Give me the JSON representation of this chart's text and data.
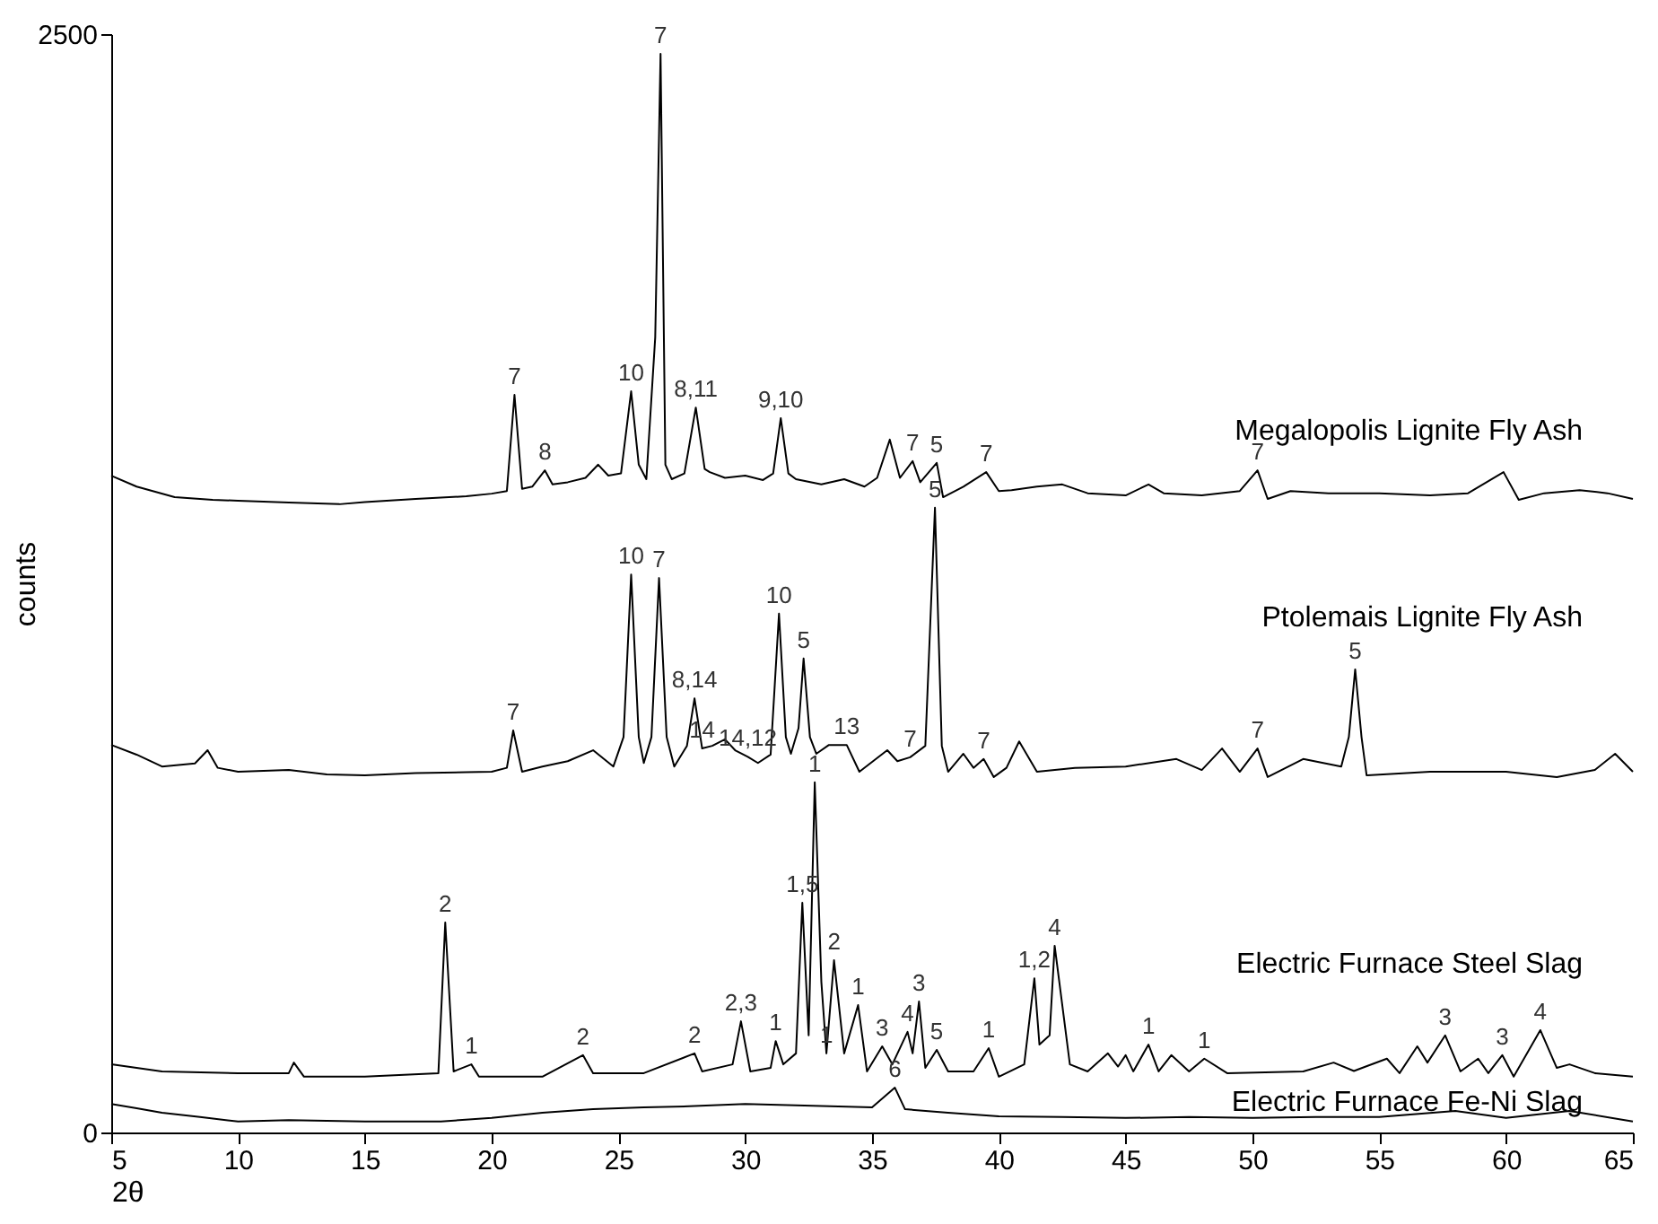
{
  "chart_data": {
    "type": "line",
    "xlabel": "2θ",
    "ylabel": "counts",
    "xlim": [
      5,
      65
    ],
    "xticks": [
      5,
      10,
      15,
      20,
      25,
      30,
      35,
      40,
      45,
      50,
      55,
      60,
      65
    ],
    "ylim": [
      0,
      2500
    ],
    "yticks": [
      0,
      2500
    ],
    "series": [
      {
        "name": "Megalopolis Lignite Fly Ash",
        "color": "#000000",
        "x": [
          5,
          6,
          7.5,
          9,
          10,
          12,
          14,
          15,
          17,
          19,
          20,
          20.6,
          20.9,
          21.2,
          21.6,
          22.1,
          22.4,
          23,
          23.7,
          24.2,
          24.6,
          25.1,
          25.5,
          25.8,
          26.1,
          26.45,
          26.66,
          26.85,
          27.1,
          27.6,
          28.05,
          28.4,
          28.6,
          29.2,
          30,
          30.7,
          31.1,
          31.4,
          31.7,
          32,
          33,
          33.9,
          34.7,
          35.2,
          35.7,
          36.1,
          36.6,
          36.9,
          37.55,
          37.8,
          38.6,
          39.5,
          40,
          40.5,
          41.5,
          42.5,
          43.5,
          45,
          45.9,
          46.5,
          48,
          49.5,
          50.2,
          50.6,
          51.5,
          53,
          55,
          57,
          58.5,
          59.9,
          60.5,
          61.5,
          62.9,
          64,
          65
        ],
        "values": [
          1495,
          1470,
          1446,
          1440,
          1438,
          1434,
          1430,
          1435,
          1442,
          1448,
          1454,
          1460,
          1679,
          1465,
          1470,
          1507,
          1475,
          1480,
          1490,
          1520,
          1495,
          1500,
          1687,
          1520,
          1487,
          1810,
          2455,
          1520,
          1487,
          1500,
          1650,
          1510,
          1503,
          1490,
          1495,
          1485,
          1500,
          1626,
          1500,
          1487,
          1475,
          1487,
          1470,
          1490,
          1577,
          1490,
          1528,
          1480,
          1524,
          1446,
          1470,
          1503,
          1460,
          1462,
          1470,
          1475,
          1455,
          1450,
          1475,
          1455,
          1450,
          1460,
          1507,
          1442,
          1460,
          1455,
          1455,
          1450,
          1455,
          1503,
          1440,
          1455,
          1462,
          1455,
          1442
        ]
      },
      {
        "name": "Ptolemais Lignite Fly Ash",
        "color": "#000000",
        "x": [
          5,
          6,
          7,
          8.3,
          8.8,
          9.2,
          10,
          12,
          13.5,
          15,
          17,
          19,
          20,
          20.6,
          20.85,
          21.2,
          22,
          23,
          24,
          24.8,
          25.2,
          25.5,
          25.8,
          26,
          26.3,
          26.6,
          26.9,
          27.2,
          27.7,
          28,
          28.3,
          28.7,
          29.2,
          29.6,
          30.1,
          30.5,
          31,
          31.33,
          31.6,
          31.8,
          32.1,
          32.3,
          32.55,
          32.8,
          33.3,
          34,
          34.5,
          35.6,
          36,
          36.5,
          37.1,
          37.48,
          37.75,
          38,
          38.6,
          39,
          39.4,
          39.8,
          40.3,
          40.8,
          41.5,
          43,
          45,
          47,
          48,
          48.8,
          49.5,
          50.2,
          50.6,
          52,
          53.5,
          53.8,
          54.05,
          54.3,
          54.5,
          57,
          60,
          62,
          63.5,
          64.3,
          65
        ],
        "values": [
          882,
          860,
          833,
          840,
          870,
          830,
          821,
          825,
          815,
          813,
          818,
          820,
          821,
          830,
          915,
          821,
          833,
          845,
          870,
          833,
          900,
          1270,
          900,
          841,
          900,
          1262,
          900,
          833,
          880,
          988,
          874,
          880,
          895,
          870,
          855,
          841,
          860,
          1181,
          900,
          862,
          920,
          1079,
          900,
          862,
          882,
          882,
          821,
          870,
          845,
          854,
          880,
          1422,
          880,
          821,
          862,
          830,
          850,
          809,
          830,
          890,
          821,
          830,
          833,
          850,
          825,
          874,
          821,
          874,
          809,
          850,
          833,
          900,
          1054,
          900,
          813,
          821,
          821,
          809,
          825,
          862,
          821
        ]
      },
      {
        "name": "Electric Furnace Steel Slag",
        "color": "#000000",
        "x": [
          5,
          7,
          10,
          12,
          12.2,
          12.6,
          15,
          17.9,
          18.17,
          18.5,
          19.2,
          19.5,
          22,
          23.6,
          24,
          26,
          28,
          28.3,
          29.5,
          29.83,
          30.2,
          31,
          31.2,
          31.5,
          32,
          32.25,
          32.5,
          32.74,
          33,
          33.2,
          33.5,
          33.9,
          34.45,
          34.8,
          35.4,
          35.8,
          36.4,
          36.6,
          36.85,
          37.1,
          37.55,
          38,
          39,
          39.6,
          40,
          41,
          41.4,
          41.6,
          42,
          42.2,
          42.8,
          43.5,
          44.3,
          44.7,
          45,
          45.3,
          45.9,
          46.3,
          46.8,
          47.5,
          48.1,
          49,
          52,
          53.2,
          54,
          55.3,
          55.8,
          56.5,
          56.9,
          57.6,
          58.2,
          58.9,
          59.3,
          59.85,
          60.3,
          61.35,
          62,
          62.5,
          63.5,
          65
        ],
        "values": [
          155,
          139,
          135,
          135,
          159,
          127,
          127,
          135,
          478,
          139,
          155,
          127,
          127,
          176,
          135,
          135,
          180,
          139,
          155,
          253,
          139,
          147,
          208,
          155,
          180,
          523,
          221,
          797,
          343,
          180,
          392,
          180,
          290,
          139,
          196,
          155,
          229,
          180,
          298,
          147,
          188,
          139,
          139,
          192,
          127,
          155,
          351,
          200,
          221,
          425,
          155,
          139,
          180,
          150,
          176,
          139,
          200,
          139,
          176,
          139,
          168,
          135,
          139,
          159,
          140,
          168,
          135,
          196,
          159,
          221,
          139,
          168,
          135,
          176,
          127,
          233,
          147,
          155,
          135,
          127
        ]
      },
      {
        "name": "Electric Furnace Fe-Ni Slag",
        "color": "#000000",
        "x": [
          5,
          6,
          7,
          8.5,
          10,
          12,
          15,
          18,
          20,
          22,
          24,
          26,
          28,
          30,
          33,
          35,
          35.9,
          36.3,
          38,
          40,
          42.5,
          45,
          47.5,
          50,
          52.5,
          55,
          58,
          60,
          62.5,
          65
        ],
        "values": [
          65,
          55,
          45,
          35,
          25,
          28,
          25,
          25,
          33,
          45,
          53,
          57,
          60,
          65,
          60,
          57,
          102,
          53,
          45,
          37,
          35,
          33,
          35,
          33,
          35,
          35,
          49,
          33,
          49,
          25
        ]
      }
    ],
    "annotations": [
      {
        "text": "7",
        "x": 26.66,
        "y": 2455
      },
      {
        "text": "7",
        "x": 20.9,
        "y": 1679
      },
      {
        "text": "8",
        "x": 22.1,
        "y": 1507
      },
      {
        "text": "10",
        "x": 25.5,
        "y": 1687
      },
      {
        "text": "8,11",
        "x": 28.05,
        "y": 1650
      },
      {
        "text": "9,10",
        "x": 31.4,
        "y": 1626
      },
      {
        "text": "7",
        "x": 36.6,
        "y": 1528
      },
      {
        "text": "5",
        "x": 37.55,
        "y": 1524
      },
      {
        "text": "7",
        "x": 39.5,
        "y": 1503
      },
      {
        "text": "7",
        "x": 50.2,
        "y": 1507
      },
      {
        "text": "10",
        "x": 25.5,
        "y": 1270
      },
      {
        "text": "7",
        "x": 26.6,
        "y": 1262
      },
      {
        "text": "10",
        "x": 31.33,
        "y": 1181
      },
      {
        "text": "5",
        "x": 37.48,
        "y": 1422
      },
      {
        "text": "5",
        "x": 32.3,
        "y": 1079
      },
      {
        "text": "7",
        "x": 20.85,
        "y": 915
      },
      {
        "text": "8,14",
        "x": 28,
        "y": 988
      },
      {
        "text": "14,12",
        "x": 30.1,
        "y": 855
      },
      {
        "text": "14",
        "x": 28.3,
        "y": 874
      },
      {
        "text": "13",
        "x": 34,
        "y": 882
      },
      {
        "text": "7",
        "x": 36.5,
        "y": 854
      },
      {
        "text": "7",
        "x": 39.4,
        "y": 850
      },
      {
        "text": "7",
        "x": 50.2,
        "y": 874
      },
      {
        "text": "5",
        "x": 54.05,
        "y": 1054
      },
      {
        "text": "2",
        "x": 18.17,
        "y": 478
      },
      {
        "text": "1",
        "x": 19.2,
        "y": 155
      },
      {
        "text": "2",
        "x": 23.6,
        "y": 176
      },
      {
        "text": "2",
        "x": 28,
        "y": 180
      },
      {
        "text": "2,3",
        "x": 29.83,
        "y": 253
      },
      {
        "text": "1",
        "x": 31.2,
        "y": 208
      },
      {
        "text": "1,5",
        "x": 32.25,
        "y": 523
      },
      {
        "text": "1",
        "x": 32.74,
        "y": 797
      },
      {
        "text": "2",
        "x": 33.5,
        "y": 392
      },
      {
        "text": "1",
        "x": 33.2,
        "y": 180
      },
      {
        "text": "1",
        "x": 34.45,
        "y": 290
      },
      {
        "text": "3",
        "x": 35.4,
        "y": 196
      },
      {
        "text": "4",
        "x": 36.4,
        "y": 229
      },
      {
        "text": "3",
        "x": 36.85,
        "y": 298
      },
      {
        "text": "5",
        "x": 37.55,
        "y": 188
      },
      {
        "text": "1",
        "x": 39.6,
        "y": 192
      },
      {
        "text": "1,2",
        "x": 41.4,
        "y": 351
      },
      {
        "text": "4",
        "x": 42.2,
        "y": 425
      },
      {
        "text": "1",
        "x": 45.9,
        "y": 200
      },
      {
        "text": "1",
        "x": 48.1,
        "y": 168
      },
      {
        "text": "3",
        "x": 57.6,
        "y": 221
      },
      {
        "text": "3",
        "x": 59.85,
        "y": 176
      },
      {
        "text": "4",
        "x": 61.35,
        "y": 233
      },
      {
        "text": "6",
        "x": 35.9,
        "y": 102
      }
    ]
  }
}
